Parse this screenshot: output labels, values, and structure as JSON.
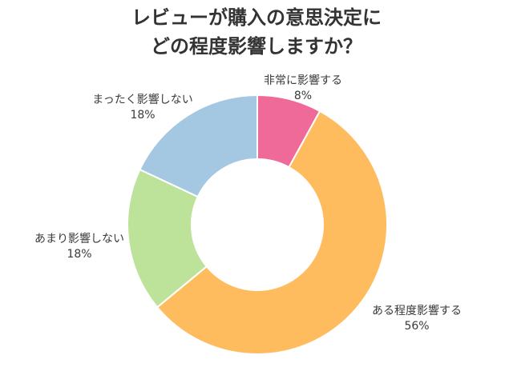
{
  "chart_data": {
    "type": "pie",
    "donut": true,
    "title_lines": [
      "レビューが購入の意思決定に",
      "どの程度影響しますか？"
    ],
    "slices": [
      {
        "label": "非常に影響する",
        "value": 8,
        "value_label": "8%",
        "color": "#f06a99"
      },
      {
        "label": "ある程度影響する",
        "value": 56,
        "value_label": "56%",
        "color": "#ffbc5f"
      },
      {
        "label": "あまり影響しない",
        "value": 18,
        "value_label": "18%",
        "color": "#bde39a"
      },
      {
        "label": "まったく影響しない",
        "value": 18,
        "value_label": "18%",
        "color": "#a4c7e2"
      }
    ],
    "legend": "none"
  }
}
